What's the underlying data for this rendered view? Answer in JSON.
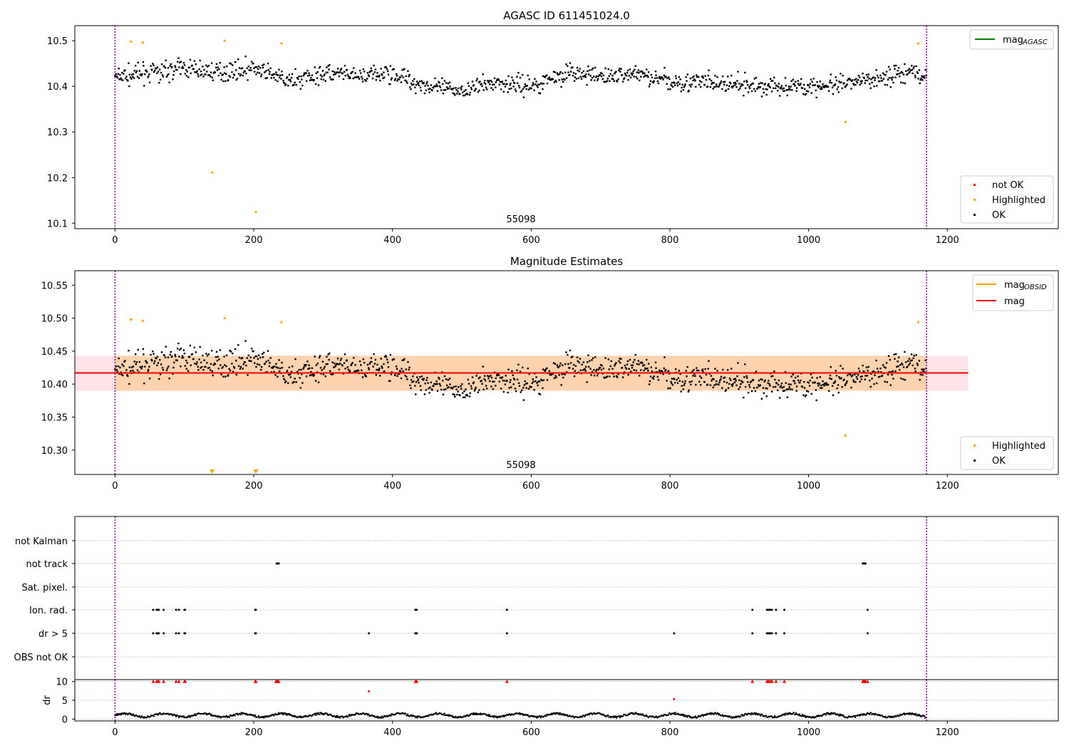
{
  "chart_data": [
    {
      "type": "scatter",
      "title": "AGASC ID 611451024.0",
      "xlabel": "",
      "ylabel": "",
      "xlim": [
        -58,
        1360
      ],
      "ylim": [
        10.088,
        10.533
      ],
      "xticks": [
        0,
        200,
        400,
        600,
        800,
        1000,
        1200
      ],
      "yticks": [
        10.1,
        10.2,
        10.3,
        10.4,
        10.5
      ],
      "ytick_labels": [
        "10.1",
        "10.2",
        "10.3",
        "10.4",
        "10.5"
      ],
      "vlines": [
        0,
        1170
      ],
      "annotation": "55098",
      "annotation_x": 585,
      "line_legend": {
        "position": "top-right",
        "entries": [
          {
            "label": "mag",
            "sub": "AGASC",
            "color": "#008000"
          }
        ]
      },
      "marker_legend": {
        "position": "bottom-right",
        "entries": [
          {
            "label": "not OK",
            "color": "#ff0000"
          },
          {
            "label": "Highlighted",
            "color": "#ffa500"
          },
          {
            "label": "OK",
            "color": "#000000"
          }
        ]
      },
      "highlighted": {
        "x": [
          23,
          40,
          140,
          158,
          203,
          240,
          1053,
          1158
        ],
        "y": [
          10.498,
          10.496,
          10.211,
          10.5,
          10.125,
          10.494,
          10.322,
          10.494
        ]
      },
      "ok_trend": {
        "x": [
          0,
          50,
          100,
          150,
          200,
          250,
          300,
          350,
          400,
          450,
          500,
          550,
          600,
          650,
          700,
          750,
          800,
          850,
          900,
          950,
          1000,
          1050,
          1100,
          1150,
          1170
        ],
        "y": [
          10.42,
          10.43,
          10.44,
          10.43,
          10.44,
          10.41,
          10.43,
          10.42,
          10.43,
          10.4,
          10.39,
          10.41,
          10.4,
          10.43,
          10.42,
          10.43,
          10.41,
          10.41,
          10.4,
          10.4,
          10.4,
          10.4,
          10.42,
          10.43,
          10.42
        ],
        "n_points": 1170,
        "spread": 0.026
      }
    },
    {
      "type": "scatter",
      "title": "Magnitude Estimates",
      "xlabel": "",
      "ylabel": "",
      "xlim": [
        -58,
        1360
      ],
      "ylim": [
        10.263,
        10.572
      ],
      "xticks": [
        0,
        200,
        400,
        600,
        800,
        1000,
        1200
      ],
      "yticks": [
        10.3,
        10.35,
        10.4,
        10.45,
        10.5,
        10.55
      ],
      "ytick_labels": [
        "10.30",
        "10.35",
        "10.40",
        "10.45",
        "10.50",
        "10.55"
      ],
      "vlines": [
        0,
        1170
      ],
      "annotation": "55098",
      "annotation_x": 585,
      "mag": 10.417,
      "band_pink": [
        10.39,
        10.443
      ],
      "band_orange": [
        10.39,
        10.443
      ],
      "band_x": [
        -58,
        1230
      ],
      "line_legend": {
        "position": "top-right",
        "entries": [
          {
            "label": "mag",
            "sub": "OBSID",
            "color": "#ffa500"
          },
          {
            "label": "mag",
            "sub": "",
            "color": "#ff0000"
          }
        ]
      },
      "marker_legend": {
        "position": "bottom-right",
        "entries": [
          {
            "label": "Highlighted",
            "color": "#ffa500"
          },
          {
            "label": "OK",
            "color": "#000000"
          }
        ]
      },
      "highlighted": {
        "x": [
          23,
          40,
          158,
          240,
          1053,
          1158
        ],
        "y": [
          10.498,
          10.496,
          10.5,
          10.494,
          10.322,
          10.494
        ]
      },
      "clipped_low": {
        "x": [
          140,
          203
        ],
        "y": [
          10.264,
          10.264
        ]
      }
    },
    {
      "type": "scatter",
      "title": "",
      "xlabel": "",
      "xlim": [
        -58,
        1360
      ],
      "categories": [
        "not Kalman",
        "not track",
        "Sat. pixel.",
        "Ion. rad.",
        "dr > 5",
        "OBS not OK"
      ],
      "flags": {
        "not track": [
          233,
          234,
          235,
          236,
          1078,
          1079,
          1080,
          1081,
          1082
        ],
        "Ion. rad.": [
          55,
          60,
          62,
          63,
          70,
          88,
          92,
          100,
          101,
          202,
          203,
          433,
          435,
          565,
          919,
          940,
          941,
          943,
          945,
          947,
          953,
          965,
          1085
        ],
        "dr > 5": [
          55,
          60,
          62,
          63,
          70,
          88,
          92,
          100,
          101,
          202,
          203,
          366,
          433,
          435,
          565,
          806,
          919,
          940,
          941,
          943,
          945,
          947,
          953,
          965,
          1085
        ]
      },
      "vlines": [
        0,
        1170
      ]
    },
    {
      "type": "scatter",
      "title": "",
      "xlabel": "",
      "ylabel": "dr",
      "xlim": [
        -58,
        1360
      ],
      "ylim": [
        -0.5,
        10.5
      ],
      "xticks": [
        0,
        200,
        400,
        600,
        800,
        1000,
        1200
      ],
      "yticks": [
        0,
        5,
        10
      ],
      "ytick_labels": [
        "0",
        "5",
        "10"
      ],
      "vlines": [
        0,
        1170
      ],
      "clipped_high": {
        "x": [
          55,
          60,
          62,
          63,
          70,
          88,
          92,
          100,
          101,
          202,
          203,
          232,
          233,
          234,
          235,
          236,
          433,
          435,
          565,
          919,
          940,
          941,
          943,
          945,
          947,
          953,
          965,
          1078,
          1079,
          1080,
          1081,
          1082,
          1085
        ],
        "y": 10
      },
      "red_points": {
        "x": [
          366,
          806
        ],
        "y": [
          7.4,
          5.3
        ]
      },
      "dr_trend": {
        "n_points": 1170,
        "mean": 1.0,
        "amp": 0.6
      }
    }
  ]
}
